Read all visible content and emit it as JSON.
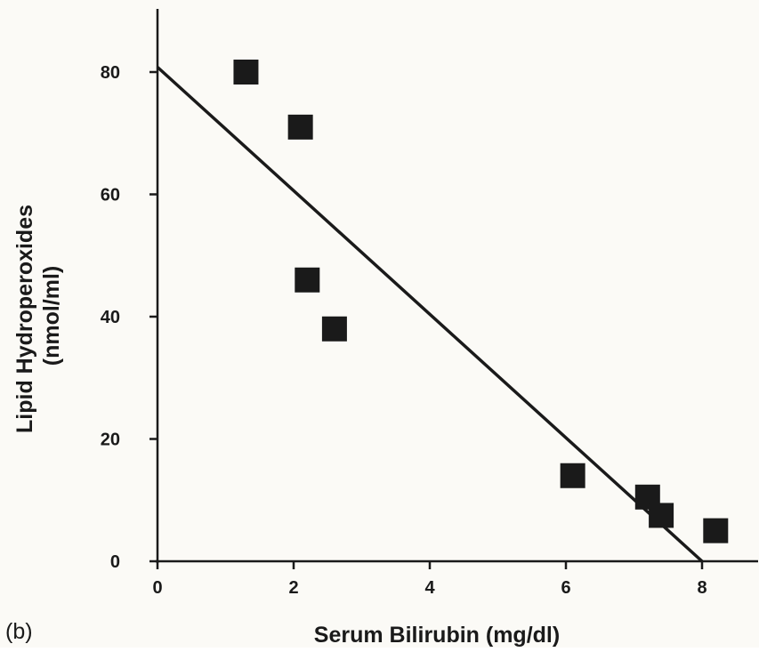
{
  "panel_label": "(b)",
  "chart_data": {
    "type": "scatter",
    "title": "",
    "xlabel": "Serum Bilirubin (mg/dl)",
    "ylabel": [
      "Lipid Hydroperoxides",
      "(nmol/ml)"
    ],
    "xlim": [
      0,
      8.8
    ],
    "ylim": [
      0,
      89
    ],
    "xticks": [
      0,
      2,
      4,
      6,
      8
    ],
    "xtick_labels": [
      "0",
      "2",
      "4",
      "6",
      "8"
    ],
    "yticks": [
      0,
      20,
      40,
      60,
      80
    ],
    "ytick_labels": [
      "0",
      "20",
      "40",
      "60",
      "80"
    ],
    "grid": false,
    "legend": "none",
    "series": [
      {
        "marker": "square",
        "color": "#1a1a1a",
        "x": [
          1.3,
          2.1,
          2.2,
          2.6,
          6.1,
          7.2,
          7.4,
          8.2
        ],
        "y": [
          80,
          71,
          46,
          38,
          14,
          10.5,
          7.5,
          5
        ]
      }
    ],
    "fit_line": {
      "color": "#1a1a1a",
      "x": [
        0,
        8.0
      ],
      "y": [
        80.8,
        0
      ]
    }
  }
}
